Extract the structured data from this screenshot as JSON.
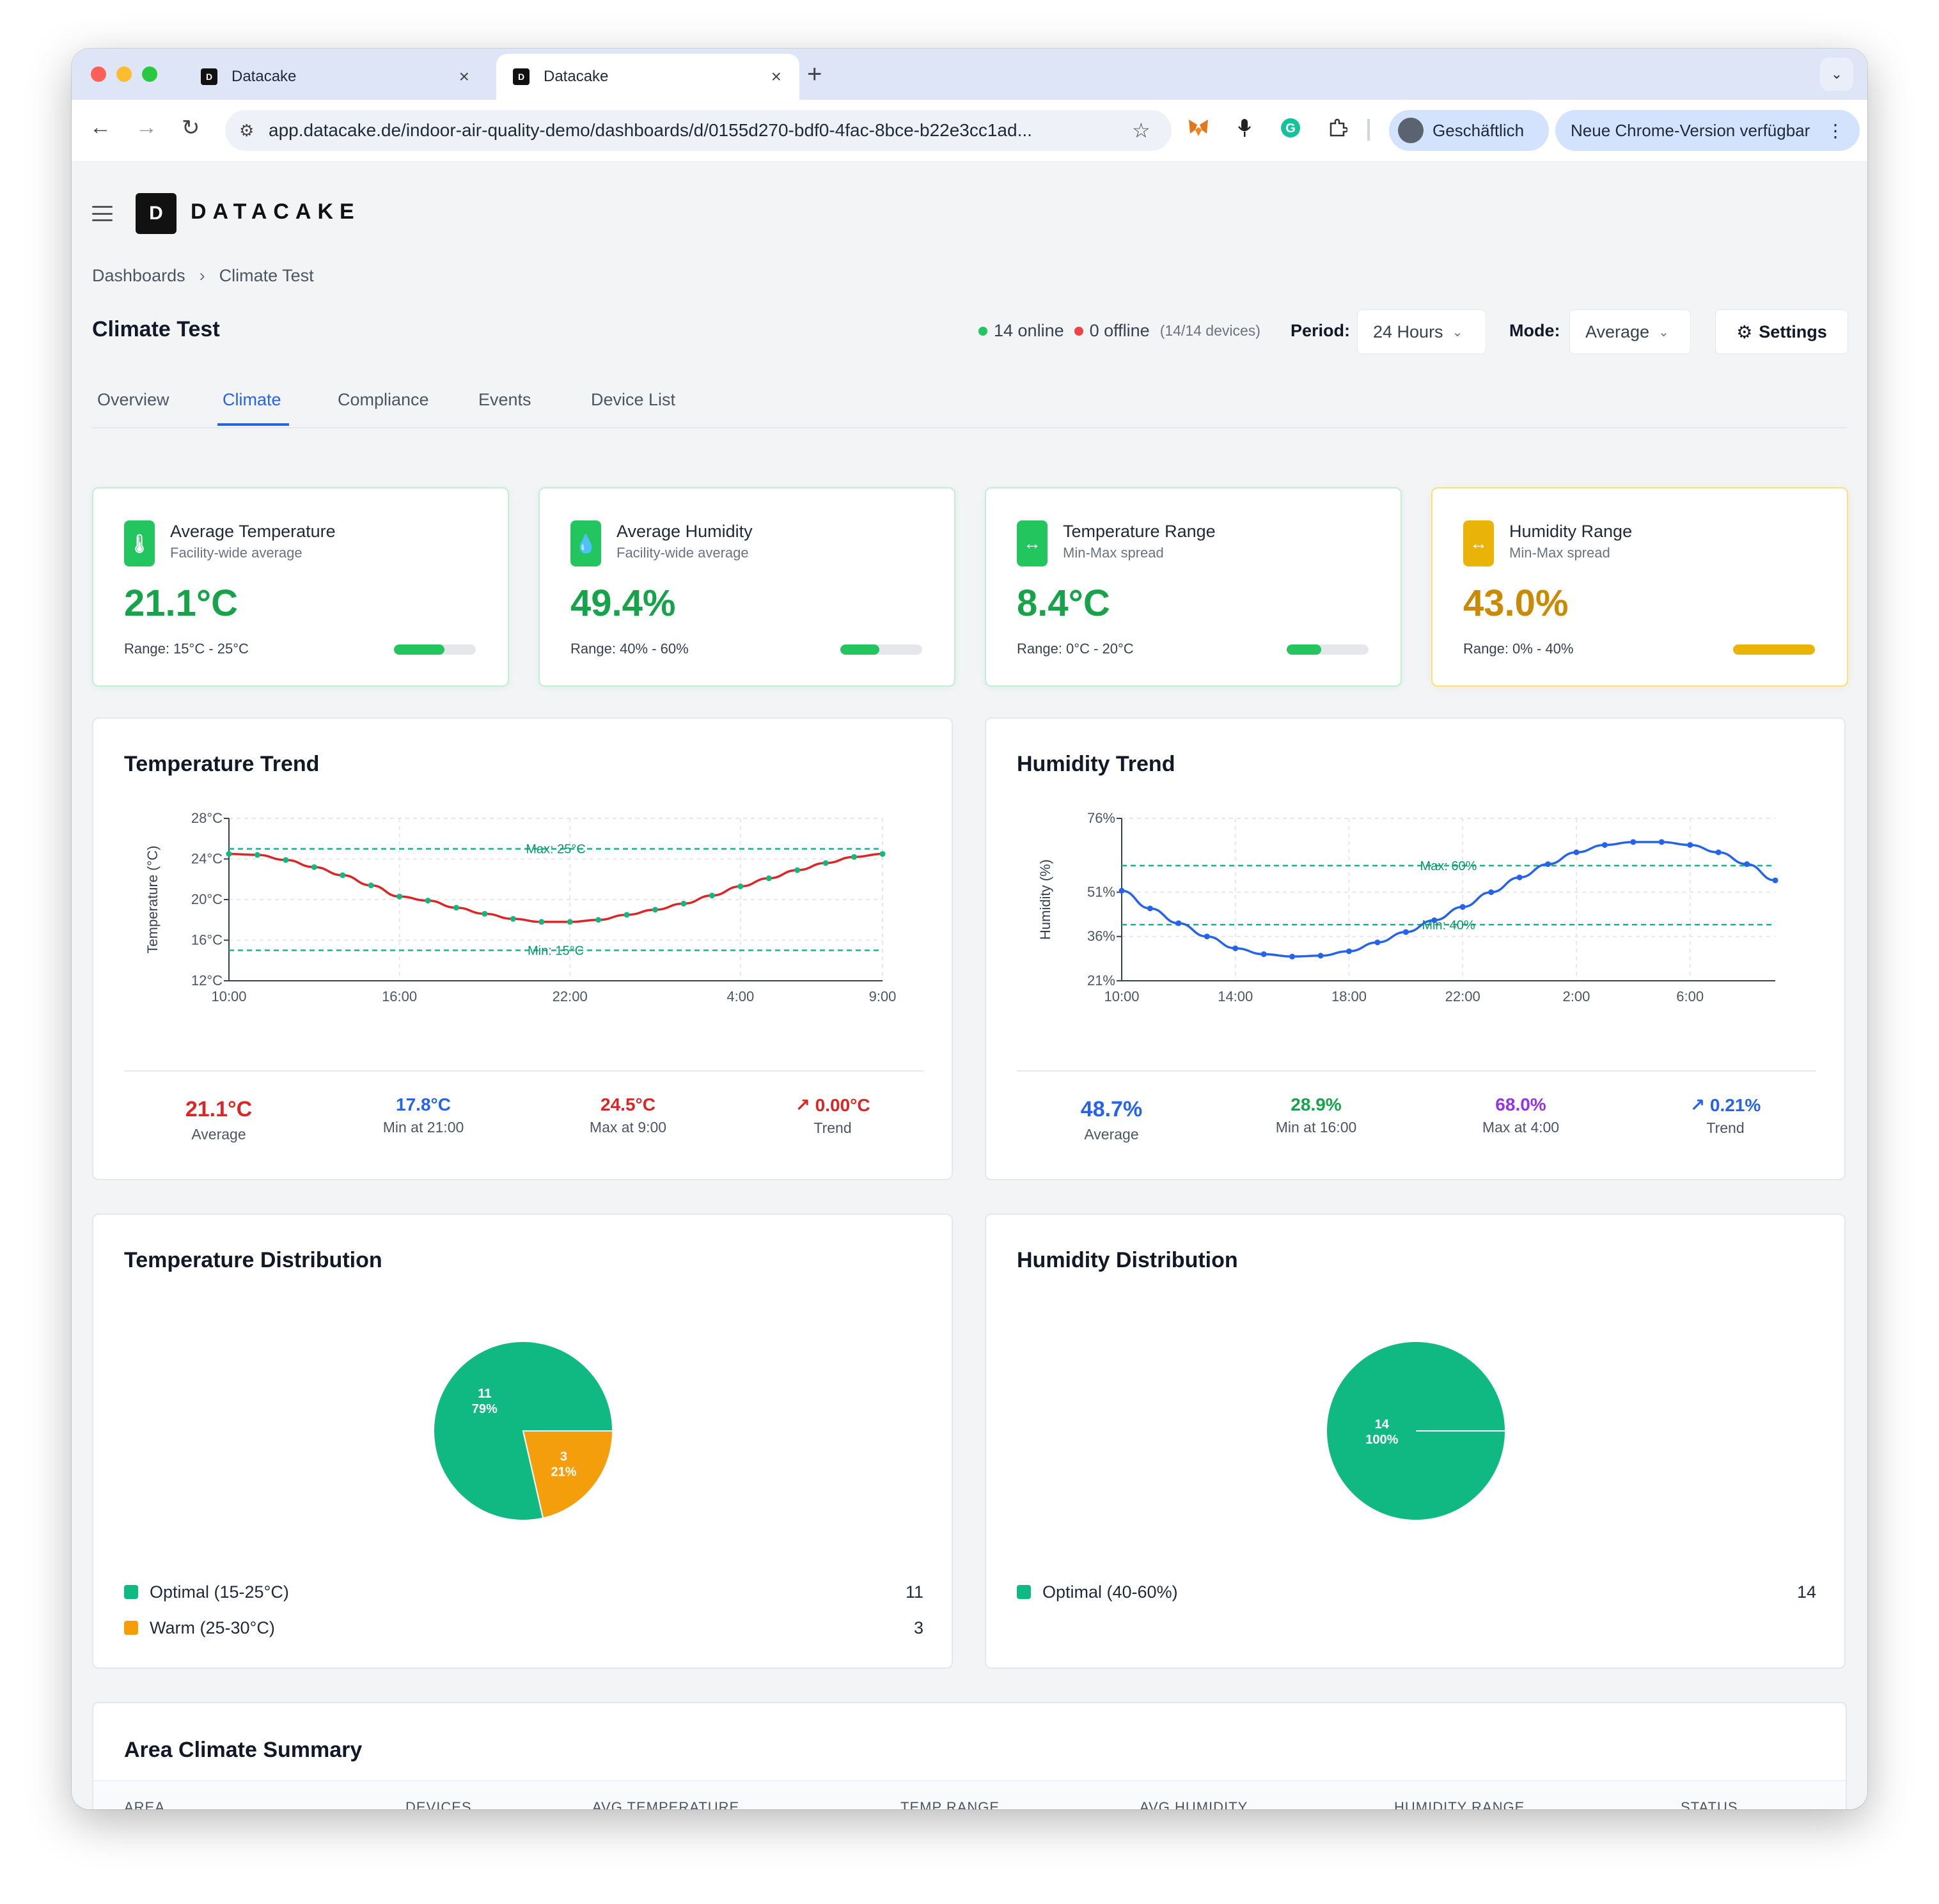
{
  "browser": {
    "tabs": [
      {
        "title": "Datacake"
      },
      {
        "title": "Datacake"
      }
    ],
    "url": "app.datacake.de/indoor-air-quality-demo/dashboards/d/0155d270-bdf0-4fac-8bce-b22e3cc1ad...",
    "profile_label": "Geschäftlich",
    "update_label": "Neue Chrome-Version verfügbar"
  },
  "brand": {
    "name": "DATACAKE"
  },
  "breadcrumb": {
    "root": "Dashboards",
    "current": "Climate Test"
  },
  "header": {
    "title": "Climate Test",
    "online": "14 online",
    "offline": "0 offline",
    "device_count": "(14/14 devices)",
    "period_label": "Period:",
    "period_value": "24 Hours",
    "mode_label": "Mode:",
    "mode_value": "Average",
    "settings_label": "Settings"
  },
  "tabs": [
    {
      "label": "Overview"
    },
    {
      "label": "Climate",
      "active": true
    },
    {
      "label": "Compliance"
    },
    {
      "label": "Events"
    },
    {
      "label": "Device List"
    }
  ],
  "kpis": [
    {
      "title": "Average Temperature",
      "subtitle": "Facility-wide average",
      "value": "21.1°C",
      "range": "Range: 15°C - 25°C",
      "progress": 0.62,
      "color": "#16a34a",
      "icon": "thermometer-icon",
      "glyph": "🌡"
    },
    {
      "title": "Average Humidity",
      "subtitle": "Facility-wide average",
      "value": "49.4%",
      "range": "Range: 40% - 60%",
      "progress": 0.48,
      "color": "#16a34a",
      "icon": "droplet-icon",
      "glyph": "💧"
    },
    {
      "title": "Temperature Range",
      "subtitle": "Min-Max spread",
      "value": "8.4°C",
      "range": "Range: 0°C - 20°C",
      "progress": 0.42,
      "color": "#16a34a",
      "icon": "arrows-horizontal-icon",
      "glyph": "↔"
    },
    {
      "title": "Humidity Range",
      "subtitle": "Min-Max spread",
      "value": "43.0%",
      "range": "Range: 0% - 40%",
      "progress": 1.0,
      "color": "#ca8a04",
      "icon": "arrows-horizontal-icon",
      "glyph": "↔"
    }
  ],
  "temperature_trend": {
    "title": "Temperature Trend",
    "stats": [
      {
        "value": "21.1°C",
        "label": "Average",
        "color": "#dc2626"
      },
      {
        "value": "17.8°C",
        "label": "Min at 21:00",
        "color": "#2563eb"
      },
      {
        "value": "24.5°C",
        "label": "Max at 9:00",
        "color": "#dc2626"
      },
      {
        "value": "↗ 0.00°C",
        "label": "Trend",
        "color": "#dc2626"
      }
    ]
  },
  "humidity_trend": {
    "title": "Humidity Trend",
    "stats": [
      {
        "value": "48.7%",
        "label": "Average",
        "color": "#2563eb"
      },
      {
        "value": "28.9%",
        "label": "Min at 16:00",
        "color": "#16a34a"
      },
      {
        "value": "68.0%",
        "label": "Max at 4:00",
        "color": "#9333ea"
      },
      {
        "value": "↗ 0.21%",
        "label": "Trend",
        "color": "#2563eb"
      }
    ]
  },
  "temperature_distribution": {
    "title": "Temperature Distribution",
    "legend": [
      {
        "label": "Optimal (15-25°C)",
        "count": "11",
        "color": "#10b981"
      },
      {
        "label": "Warm (25-30°C)",
        "count": "3",
        "color": "#f59e0b"
      }
    ]
  },
  "humidity_distribution": {
    "title": "Humidity Distribution",
    "legend": [
      {
        "label": "Optimal (40-60%)",
        "count": "14",
        "color": "#10b981"
      }
    ]
  },
  "area_summary": {
    "title": "Area Climate Summary",
    "columns": [
      "AREA",
      "DEVICES",
      "AVG TEMPERATURE",
      "TEMP RANGE",
      "AVG HUMIDITY",
      "HUMIDITY RANGE",
      "STATUS"
    ]
  },
  "chart_data": [
    {
      "type": "line",
      "title": "Temperature Trend",
      "ylabel": "Temperature (°C)",
      "ylim": [
        12,
        28
      ],
      "y_ticks": [
        "12°C",
        "16°C",
        "20°C",
        "24°C",
        "28°C"
      ],
      "x_ticks": [
        "10:00",
        "16:00",
        "22:00",
        "4:00",
        "9:00"
      ],
      "x": [
        "10:00",
        "11:00",
        "12:00",
        "13:00",
        "14:00",
        "15:00",
        "16:00",
        "17:00",
        "18:00",
        "19:00",
        "20:00",
        "21:00",
        "22:00",
        "23:00",
        "0:00",
        "1:00",
        "2:00",
        "3:00",
        "4:00",
        "5:00",
        "6:00",
        "7:00",
        "8:00",
        "9:00"
      ],
      "series": [
        {
          "values": [
            24.5,
            24.4,
            23.9,
            23.2,
            22.4,
            21.4,
            20.3,
            19.9,
            19.2,
            18.6,
            18.1,
            17.8,
            17.8,
            18.0,
            18.5,
            19.0,
            19.6,
            20.4,
            21.3,
            22.1,
            22.9,
            23.6,
            24.2,
            24.5
          ],
          "color": "#dc2626"
        }
      ],
      "reference_lines": [
        {
          "label": "Max: 25°C",
          "value": 25
        },
        {
          "label": "Min: 15°C",
          "value": 15
        }
      ],
      "grid": true
    },
    {
      "type": "line",
      "title": "Humidity Trend",
      "ylabel": "Humidity (%)",
      "ylim": [
        21,
        76
      ],
      "y_ticks": [
        "21%",
        "36%",
        "51%",
        "76%"
      ],
      "x_ticks": [
        "10:00",
        "14:00",
        "18:00",
        "22:00",
        "2:00",
        "6:00"
      ],
      "x": [
        "10:00",
        "11:00",
        "12:00",
        "13:00",
        "14:00",
        "15:00",
        "16:00",
        "17:00",
        "18:00",
        "19:00",
        "20:00",
        "21:00",
        "22:00",
        "23:00",
        "0:00",
        "1:00",
        "2:00",
        "3:00",
        "4:00",
        "5:00",
        "6:00",
        "7:00",
        "8:00",
        "9:00"
      ],
      "series": [
        {
          "values": [
            51.5,
            45.5,
            40.5,
            36.0,
            32.0,
            30.0,
            29.2,
            29.5,
            31.0,
            34.0,
            37.5,
            41.5,
            46.0,
            51.0,
            56.0,
            60.5,
            64.5,
            67.0,
            68.0,
            68.0,
            67.0,
            64.5,
            60.5,
            55.0
          ],
          "color": "#2563eb"
        }
      ],
      "reference_lines": [
        {
          "label": "Max: 60%",
          "value": 60
        },
        {
          "label": "Min: 40%",
          "value": 40
        }
      ],
      "grid": true
    },
    {
      "type": "pie",
      "title": "Temperature Distribution",
      "slices": [
        {
          "label": "Optimal (15-25°C)",
          "value": 11,
          "percent": "79%",
          "color": "#10b981"
        },
        {
          "label": "Warm (25-30°C)",
          "value": 3,
          "percent": "21%",
          "color": "#f59e0b"
        }
      ]
    },
    {
      "type": "pie",
      "title": "Humidity Distribution",
      "slices": [
        {
          "label": "Optimal (40-60%)",
          "value": 14,
          "percent": "100%",
          "color": "#10b981"
        }
      ]
    }
  ]
}
